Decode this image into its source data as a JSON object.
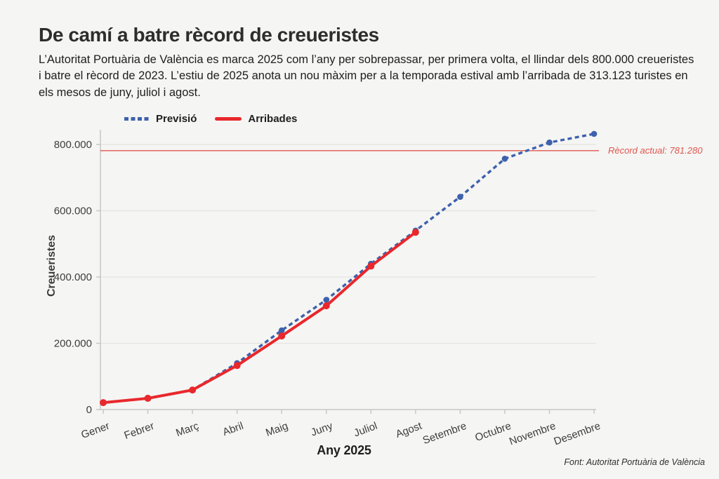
{
  "page": {
    "title": "De camí a batre rècord de creueristes",
    "subtitle": "L’Autoritat Portuària de València es marca 2025 com l’any per sobrepassar, per primera volta, el llindar dels 800.000 creueristes i batre el rècord de 2023. L’estiu de 2025 anota un nou màxim per a la temporada estival amb l’arribada de 313.123 turistes en els mesos de juny, juliol i agost.",
    "source": "Font: Autoritat Portuària de València"
  },
  "chart_data": {
    "type": "line",
    "title": "",
    "xlabel": "Any 2025",
    "ylabel": "Creueristes",
    "categories": [
      "Gener",
      "Febrer",
      "Març",
      "Abril",
      "Maig",
      "Juny",
      "Juliol",
      "Agost",
      "Setembre",
      "Octubre",
      "Novembre",
      "Desembre"
    ],
    "series": [
      {
        "name": "Previsió",
        "style": "dashed",
        "color": "#3d61ac",
        "values": [
          21000,
          34000,
          59000,
          140000,
          239000,
          331000,
          440000,
          540000,
          642000,
          757000,
          806000,
          832000
        ]
      },
      {
        "name": "Arribades",
        "style": "solid",
        "color": "#e8282c",
        "values": [
          21000,
          34000,
          59000,
          133000,
          222000,
          313000,
          433000,
          535000
        ]
      }
    ],
    "ylim": [
      0,
      870000
    ],
    "yticks": [
      {
        "value": 0,
        "label": "0"
      },
      {
        "value": 200000,
        "label": "200.000"
      },
      {
        "value": 400000,
        "label": "400.000"
      },
      {
        "value": 600000,
        "label": "600.000"
      },
      {
        "value": 800000,
        "label": "800.000"
      }
    ],
    "grid": "horizontal-only",
    "legend_position": "top-left",
    "annotation": {
      "label": "Rècord actual: 781.280",
      "value": 781280,
      "color": "#e0564f"
    }
  },
  "colors": {
    "background": "#f5f5f3",
    "grid": "#e4e4e1",
    "axis": "#c7c7c4",
    "tick_label": "#3d3d3d"
  }
}
